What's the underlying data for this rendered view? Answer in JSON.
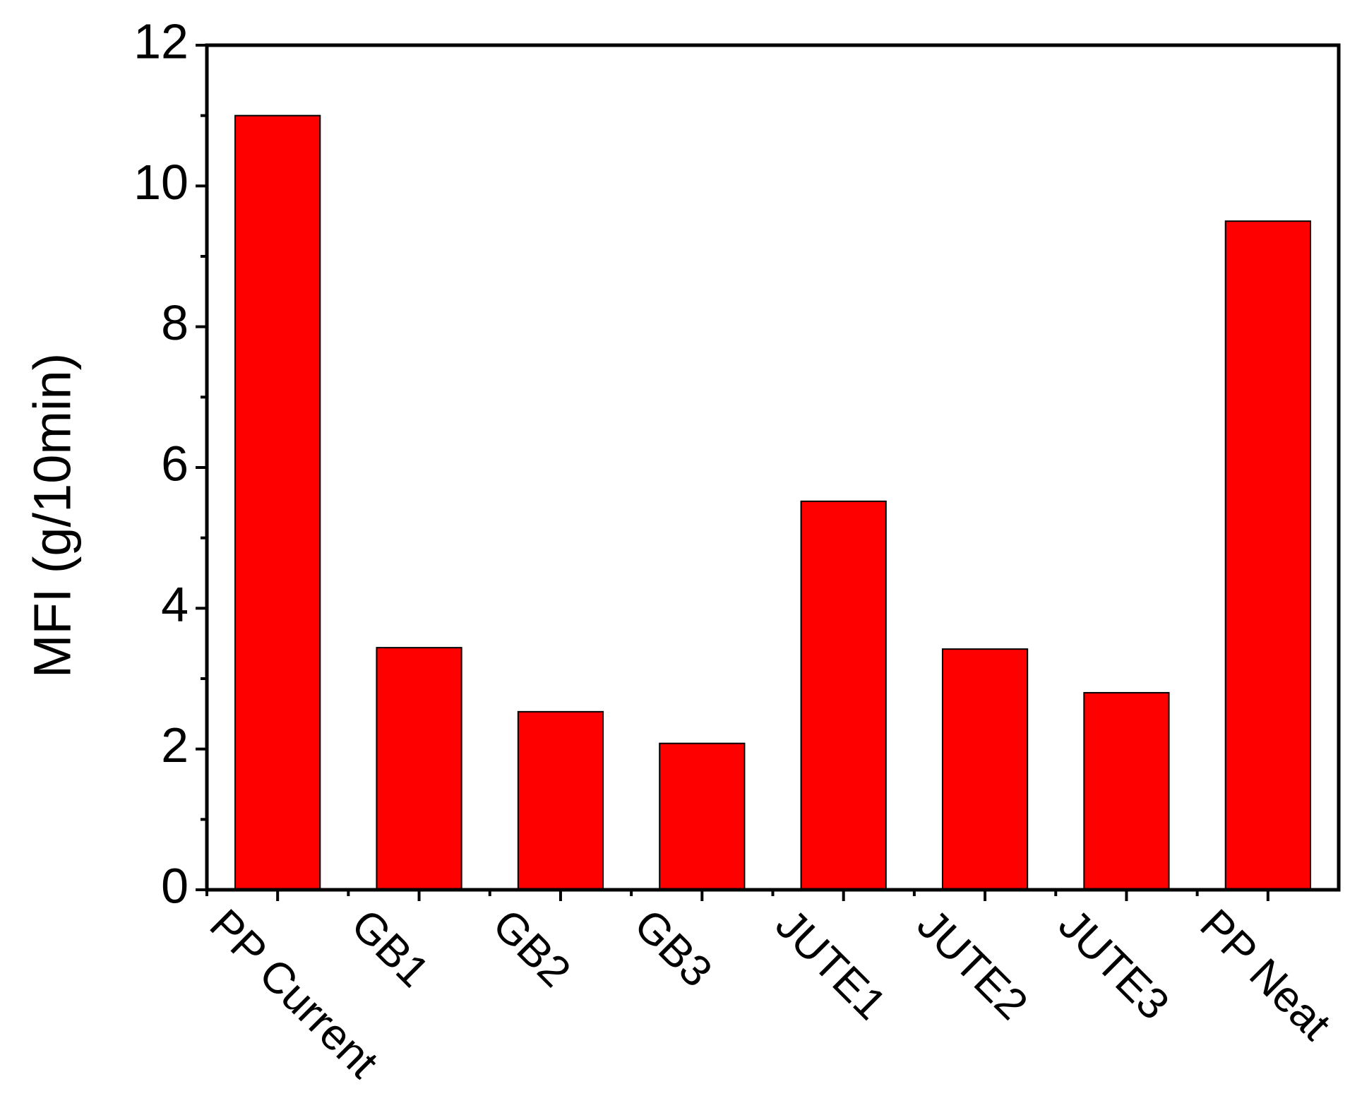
{
  "chart_data": {
    "type": "bar",
    "y_label": "MFI (g/10min)",
    "categories": [
      "PP Current",
      "GB1",
      "GB2",
      "GB3",
      "JUTE1",
      "JUTE2",
      "JUTE3",
      "PP Neat"
    ],
    "values": [
      11.0,
      3.44,
      2.53,
      2.08,
      5.52,
      3.42,
      2.8,
      9.5
    ],
    "color": "#ff0000",
    "ylim": [
      0,
      12
    ],
    "yticks": [
      0,
      2,
      4,
      6,
      8,
      10,
      12
    ],
    "grid": false
  }
}
